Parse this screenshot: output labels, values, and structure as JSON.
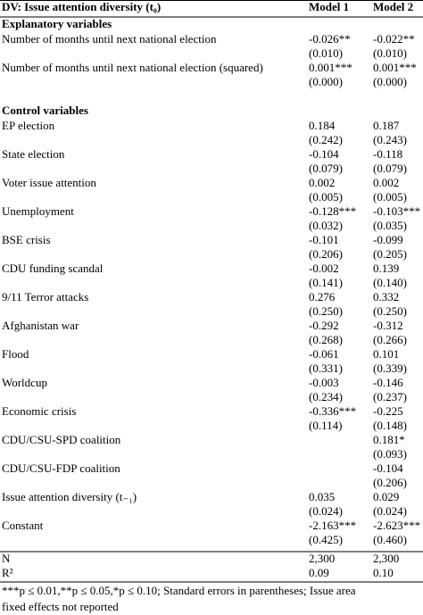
{
  "header": {
    "dv": "DV: Issue attention diversity (t₀)",
    "model1": "Model 1",
    "model2": "Model 2"
  },
  "sections": [
    {
      "title": "Explanatory variables",
      "rows": [
        {
          "label": "Number of months until next national election",
          "model1": [
            "-0.026**",
            "(0.010)"
          ],
          "model2": [
            "-0.022**",
            "(0.010)"
          ]
        },
        {
          "label": "Number of months until next national election (squared)",
          "model1": [
            "0.001***",
            "(0.000)"
          ],
          "model2": [
            "0.001***",
            "(0.000)"
          ]
        }
      ]
    },
    {
      "title": "Control variables",
      "rows": [
        {
          "label": "EP election",
          "model1": [
            "0.184",
            "(0.242)"
          ],
          "model2": [
            "0.187",
            "(0.243)"
          ]
        },
        {
          "label": "State election",
          "model1": [
            "-0.104",
            "(0.079)"
          ],
          "model2": [
            "-0.118",
            "(0.079)"
          ]
        },
        {
          "label": "Voter issue attention",
          "model1": [
            "0.002",
            "(0.005)"
          ],
          "model2": [
            "0.002",
            "(0.005)"
          ]
        },
        {
          "label": "Unemployment",
          "model1": [
            "-0.128***",
            "(0.032)"
          ],
          "model2": [
            "-0.103***",
            "(0.035)"
          ]
        },
        {
          "label": "BSE crisis",
          "model1": [
            "-0.101",
            "(0.206)"
          ],
          "model2": [
            "-0.099",
            "(0.205)"
          ]
        },
        {
          "label": "CDU funding scandal",
          "model1": [
            "-0.002",
            "(0.141)"
          ],
          "model2": [
            "0.139",
            "(0.140)"
          ]
        },
        {
          "label": "9/11 Terror attacks",
          "model1": [
            "0.276",
            "(0.250)"
          ],
          "model2": [
            "0.332",
            "(0.250)"
          ]
        },
        {
          "label": "Afghanistan war",
          "model1": [
            "-0.292",
            "(0.268)"
          ],
          "model2": [
            "-0.312",
            "(0.266)"
          ]
        },
        {
          "label": "Flood",
          "model1": [
            "-0.061",
            "(0.331)"
          ],
          "model2": [
            "0.101",
            "(0.339)"
          ]
        },
        {
          "label": "Worldcup",
          "model1": [
            "-0.003",
            "(0.234)"
          ],
          "model2": [
            "-0.146",
            "(0.237)"
          ]
        },
        {
          "label": "Economic crisis",
          "model1": [
            "-0.336***",
            "(0.114)"
          ],
          "model2": [
            "-0.225",
            "(0.148)"
          ]
        },
        {
          "label": "CDU/CSU-SPD coalition",
          "model1": null,
          "model2": [
            "0.181*",
            "(0.093)"
          ]
        },
        {
          "label": "CDU/CSU-FDP coalition",
          "model1": null,
          "model2": [
            "-0.104",
            "(0.206)"
          ]
        },
        {
          "label": "Issue attention diversity (t₋₁)",
          "model1": [
            "0.035",
            "(0.024)"
          ],
          "model2": [
            "0.029",
            "(0.024)"
          ]
        },
        {
          "label": "Constant",
          "model1": [
            "-2.163***",
            "(0.425)"
          ],
          "model2": [
            "-2.623***",
            "(0.460)"
          ]
        }
      ]
    }
  ],
  "stats": [
    {
      "label": "N",
      "model1": "2,300",
      "model2": "2,300"
    },
    {
      "label": "R²",
      "model1": "0.09",
      "model2": "0.10"
    }
  ],
  "footnote": [
    "***p ≤ 0.01,**p ≤ 0.05,*p ≤ 0.10; Standard errors in parentheses; Issue area",
    "fixed effects not reported"
  ]
}
